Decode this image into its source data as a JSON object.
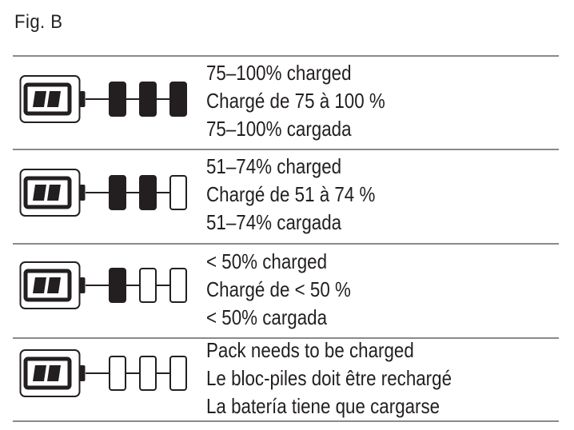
{
  "figure_label": "Fig. B",
  "colors": {
    "ink": "#231f20",
    "rule": "#8a8a8a",
    "background": "#ffffff"
  },
  "icons": {
    "battery": "battery-icon",
    "segment": "charge-segment-icon"
  },
  "rows": [
    {
      "filled_segments": 3,
      "total_segments": 3,
      "lines": [
        "75–100% charged",
        "Chargé de 75 à 100 %",
        "75–100% cargada"
      ]
    },
    {
      "filled_segments": 2,
      "total_segments": 3,
      "lines": [
        "51–74% charged",
        "Chargé de 51 à 74 %",
        "51–74% cargada"
      ]
    },
    {
      "filled_segments": 1,
      "total_segments": 3,
      "lines": [
        "< 50% charged",
        "Chargé de < 50 %",
        "< 50% cargada"
      ]
    },
    {
      "filled_segments": 0,
      "total_segments": 3,
      "lines": [
        "Pack needs to be charged",
        "Le bloc-piles doit être rechargé",
        "La batería tiene que cargarse"
      ]
    }
  ]
}
